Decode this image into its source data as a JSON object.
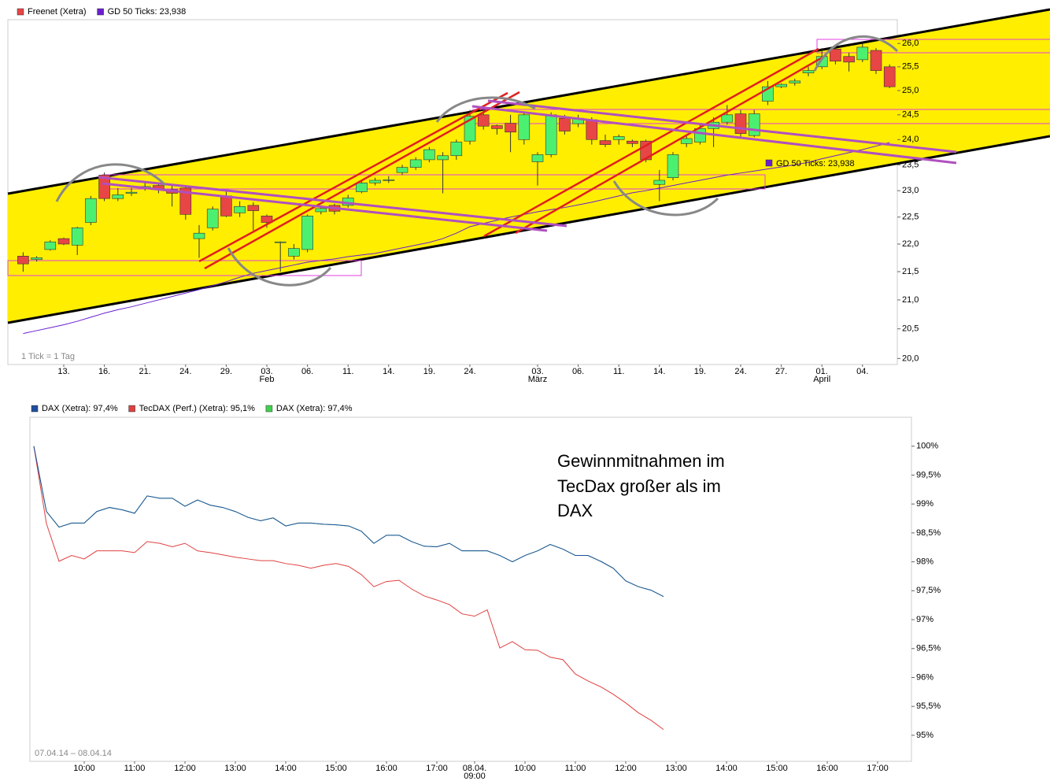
{
  "chart_data": [
    {
      "type": "candlestick",
      "note": "1 Tick = 1 Tag",
      "log_scale": true,
      "categories": [
        null,
        null,
        null,
        "13.",
        null,
        null,
        "16.",
        null,
        null,
        "21.",
        null,
        null,
        "24.",
        null,
        null,
        "29.",
        null,
        null,
        "03.",
        null,
        null,
        "06.",
        null,
        null,
        "11.",
        null,
        null,
        "14.",
        null,
        null,
        "19.",
        null,
        null,
        "24.",
        null,
        null,
        null,
        null,
        "03.",
        null,
        null,
        "06.",
        null,
        null,
        "11.",
        null,
        null,
        "14.",
        null,
        null,
        "19.",
        null,
        null,
        "24.",
        null,
        null,
        "27.",
        null,
        null,
        "01.",
        null,
        null,
        "04.",
        null,
        null
      ],
      "category_sublabels": [
        null,
        null,
        null,
        null,
        null,
        null,
        null,
        null,
        null,
        null,
        null,
        null,
        null,
        null,
        null,
        null,
        null,
        null,
        "Feb",
        null,
        null,
        null,
        null,
        null,
        null,
        null,
        null,
        null,
        null,
        null,
        null,
        null,
        null,
        null,
        null,
        null,
        null,
        null,
        "März",
        null,
        null,
        null,
        null,
        null,
        null,
        null,
        null,
        null,
        null,
        null,
        null,
        null,
        null,
        null,
        null,
        null,
        null,
        null,
        null,
        "April",
        null,
        null,
        null,
        null,
        null
      ],
      "series": [
        {
          "name": "Freenet (Xetra)",
          "color": "#e84545",
          "up_color": "#4cf070",
          "open": [
            21.78,
            21.72,
            21.9,
            22.1,
            21.98,
            22.4,
            23.3,
            22.85,
            22.95,
            23.05,
            23.1,
            23.02,
            23.05,
            22.1,
            22.3,
            22.9,
            22.58,
            22.72,
            22.52,
            22.03,
            21.78,
            21.9,
            22.6,
            22.72,
            22.72,
            22.98,
            23.15,
            23.2,
            23.35,
            23.45,
            23.6,
            23.6,
            23.68,
            23.97,
            24.5,
            24.28,
            24.33,
            24.0,
            23.56,
            23.7,
            24.43,
            24.32,
            24.4,
            23.98,
            24.0,
            23.97,
            23.97,
            23.12,
            23.25,
            23.92,
            23.95,
            24.22,
            24.35,
            24.52,
            24.08,
            24.78,
            25.08,
            25.16,
            25.37,
            25.5,
            25.88,
            25.72,
            25.65,
            25.85,
            25.5
          ],
          "high": [
            21.85,
            21.78,
            22.07,
            22.12,
            22.32,
            22.9,
            23.35,
            23.05,
            23.05,
            23.15,
            23.15,
            23.1,
            23.1,
            22.35,
            22.7,
            23.0,
            22.8,
            22.78,
            22.55,
            22.05,
            22.0,
            22.55,
            22.72,
            22.75,
            22.92,
            23.2,
            23.25,
            23.28,
            23.5,
            23.65,
            23.85,
            23.75,
            24.0,
            24.6,
            24.6,
            24.3,
            24.5,
            24.55,
            23.75,
            24.55,
            24.5,
            24.5,
            24.45,
            24.1,
            24.1,
            24.0,
            24.0,
            23.4,
            23.75,
            24.1,
            24.3,
            24.45,
            24.7,
            24.6,
            24.6,
            25.2,
            25.15,
            25.25,
            25.5,
            25.9,
            25.95,
            25.8,
            26.0,
            25.9,
            25.55
          ],
          "low": [
            21.5,
            21.68,
            21.88,
            21.98,
            21.8,
            22.35,
            22.8,
            22.8,
            22.9,
            23.0,
            22.95,
            22.7,
            22.45,
            21.75,
            22.25,
            22.5,
            22.5,
            22.25,
            22.3,
            21.5,
            21.72,
            21.85,
            22.55,
            22.55,
            22.68,
            22.95,
            23.1,
            23.15,
            23.3,
            23.4,
            23.55,
            22.95,
            23.6,
            23.9,
            24.2,
            24.1,
            23.75,
            23.9,
            23.1,
            23.65,
            24.1,
            24.25,
            23.9,
            23.85,
            23.9,
            23.85,
            23.55,
            22.8,
            23.2,
            23.85,
            23.9,
            23.85,
            24.3,
            24.05,
            24.05,
            24.7,
            25.05,
            25.1,
            25.3,
            25.45,
            25.55,
            25.4,
            25.6,
            25.35,
            25.05
          ],
          "close": [
            21.64,
            21.75,
            22.04,
            22.0,
            22.3,
            22.85,
            22.85,
            22.92,
            22.97,
            23.08,
            23.03,
            22.95,
            22.55,
            22.2,
            22.65,
            22.52,
            22.7,
            22.62,
            22.4,
            22.04,
            21.92,
            22.52,
            22.66,
            22.61,
            22.86,
            23.15,
            23.2,
            23.21,
            23.45,
            23.6,
            23.8,
            23.68,
            23.95,
            24.47,
            24.27,
            24.22,
            24.15,
            24.5,
            23.7,
            24.5,
            24.17,
            24.43,
            24.0,
            23.9,
            24.06,
            23.92,
            23.6,
            23.2,
            23.7,
            24.02,
            24.22,
            24.35,
            24.5,
            24.12,
            24.52,
            25.08,
            25.13,
            25.2,
            25.42,
            25.72,
            25.62,
            25.6,
            25.92,
            25.42,
            25.08
          ]
        },
        {
          "name": "GD 50 Ticks: 23,938",
          "color": "#6a1fd0",
          "values": [
            20.42,
            20.47,
            20.52,
            20.57,
            20.63,
            20.7,
            20.77,
            20.83,
            20.88,
            20.94,
            21.0,
            21.06,
            21.12,
            21.18,
            21.25,
            21.32,
            21.4,
            21.47,
            21.52,
            21.57,
            21.62,
            21.67,
            21.7,
            21.73,
            21.77,
            21.8,
            21.83,
            21.88,
            21.93,
            21.98,
            22.03,
            22.1,
            22.2,
            22.32,
            22.38,
            22.44,
            22.5,
            22.55,
            22.6,
            22.64,
            22.68,
            22.73,
            22.78,
            22.84,
            22.9,
            22.96,
            23.0,
            23.05,
            23.1,
            23.15,
            23.2,
            23.25,
            23.3,
            23.34,
            23.38,
            23.42,
            23.46,
            23.5,
            23.55,
            23.62,
            23.68,
            23.74,
            23.8,
            23.87,
            23.94
          ]
        }
      ],
      "ylim": [
        19.9,
        26.52
      ],
      "yticks": [
        {
          "value": 20,
          "label": "20,0"
        },
        {
          "value": 20.5,
          "label": "20,5"
        },
        {
          "value": 21,
          "label": "21,0"
        },
        {
          "value": 21.5,
          "label": "21,5"
        },
        {
          "value": 22,
          "label": "22,0"
        },
        {
          "value": 22.5,
          "label": "22,5"
        },
        {
          "value": 23,
          "label": "23,0"
        },
        {
          "value": 23.5,
          "label": "23,5"
        },
        {
          "value": 24,
          "label": "24,0"
        },
        {
          "value": 24.5,
          "label": "24,5"
        },
        {
          "value": 25,
          "label": "25,0"
        },
        {
          "value": 25.5,
          "label": "25,5"
        },
        {
          "value": 26,
          "label": "26,0"
        }
      ],
      "grid": false
    },
    {
      "type": "line",
      "period": "07.04.14 – 08.04.14",
      "annotation": [
        "Gewinnmitnahmen im",
        "TecDax großer als im",
        "DAX"
      ],
      "categories": [
        null,
        null,
        null,
        null,
        "10:00",
        null,
        null,
        null,
        "11:00",
        null,
        null,
        null,
        "12:00",
        null,
        null,
        null,
        "13:00",
        null,
        null,
        null,
        "14:00",
        null,
        null,
        null,
        "15:00",
        null,
        null,
        null,
        "16:00",
        null,
        null,
        null,
        "17:00",
        null,
        null,
        "08.04.",
        null,
        null,
        null,
        "10:00",
        null,
        null,
        null,
        "11:00",
        null,
        null,
        null,
        "12:00",
        null,
        null,
        null,
        "13:00",
        null,
        null,
        null,
        "14:00",
        null,
        null,
        null,
        "15:00",
        null,
        null,
        null,
        "16:00",
        null,
        null,
        null,
        "17:00"
      ],
      "category_sublabels": [
        null,
        null,
        null,
        null,
        null,
        null,
        null,
        null,
        null,
        null,
        null,
        null,
        null,
        null,
        null,
        null,
        null,
        null,
        null,
        null,
        null,
        null,
        null,
        null,
        null,
        null,
        null,
        null,
        null,
        null,
        null,
        null,
        null,
        null,
        null,
        "09:00",
        null,
        null,
        null,
        null,
        null,
        null,
        null,
        null,
        null,
        null,
        null,
        null,
        null,
        null,
        null,
        null,
        null,
        null,
        null,
        null,
        null,
        null,
        null,
        null,
        null,
        null,
        null,
        null,
        null,
        null,
        null,
        null
      ],
      "series": [
        {
          "name": "DAX (Xetra): 97,4%",
          "color": "#1f4e9e",
          "values": [
            100.0,
            98.87,
            98.6,
            98.67,
            98.67,
            98.87,
            98.94,
            98.9,
            98.84,
            99.14,
            99.1,
            99.1,
            98.96,
            99.07,
            98.98,
            98.94,
            98.87,
            98.77,
            98.71,
            98.76,
            98.62,
            98.67,
            98.67,
            98.65,
            98.64,
            98.62,
            98.53,
            98.32,
            98.46,
            98.46,
            98.35,
            98.27,
            98.26,
            98.32,
            98.19,
            98.19,
            98.19,
            98.11,
            98.0,
            98.11,
            98.19,
            98.3,
            98.22,
            98.11,
            98.11,
            98.01,
            97.89,
            97.67,
            97.57,
            97.51,
            97.4,
            null,
            null,
            null,
            null,
            null,
            null,
            null,
            null,
            null,
            null,
            null,
            null,
            null,
            null,
            null,
            null,
            null
          ]
        },
        {
          "name": "TecDAX (Perf.) (Xetra): 95,1%",
          "color": "#e04040",
          "values": [
            100.0,
            98.66,
            98.01,
            98.11,
            98.05,
            98.19,
            98.19,
            98.19,
            98.16,
            98.35,
            98.32,
            98.26,
            98.32,
            98.19,
            98.16,
            98.12,
            98.08,
            98.05,
            98.02,
            98.02,
            97.97,
            97.94,
            97.89,
            97.94,
            97.97,
            97.92,
            97.78,
            97.57,
            97.66,
            97.68,
            97.53,
            97.41,
            97.34,
            97.26,
            97.1,
            97.06,
            97.17,
            96.51,
            96.62,
            96.48,
            96.47,
            96.35,
            96.31,
            96.06,
            95.94,
            95.84,
            95.71,
            95.56,
            95.39,
            95.26,
            95.1,
            null,
            null,
            null,
            null,
            null,
            null,
            null,
            null,
            null,
            null,
            null,
            null,
            null,
            null,
            null,
            null,
            null
          ]
        },
        {
          "name": "DAX (Xetra): 97,4%",
          "color": "#40d050",
          "values": [
            100.0,
            98.87,
            98.6,
            98.67,
            98.67,
            98.87,
            98.94,
            98.9,
            98.84,
            99.14,
            99.1,
            99.1,
            98.96,
            99.07,
            98.98,
            98.94,
            98.87,
            98.77,
            98.71,
            98.76,
            98.62,
            98.67,
            98.67,
            98.65,
            98.64,
            98.62,
            98.53,
            98.32,
            98.46,
            98.46,
            98.35,
            98.27,
            98.26,
            98.32,
            98.19,
            98.19,
            98.19,
            98.11,
            98.0,
            98.11,
            98.19,
            98.3,
            98.22,
            98.11,
            98.11,
            98.01,
            97.89,
            97.67,
            97.57,
            97.51,
            97.4,
            null,
            null,
            null,
            null,
            null,
            null,
            null,
            null,
            null,
            null,
            null,
            null,
            null,
            null,
            null,
            null,
            null
          ]
        }
      ],
      "ylim": [
        94.55,
        100.5
      ],
      "yticks": [
        {
          "value": 95,
          "label": "95%"
        },
        {
          "value": 95.5,
          "label": "95,5%"
        },
        {
          "value": 96,
          "label": "96%"
        },
        {
          "value": 96.5,
          "label": "96,5%"
        },
        {
          "value": 97,
          "label": "97%"
        },
        {
          "value": 97.5,
          "label": "97,5%"
        },
        {
          "value": 98,
          "label": "98%"
        },
        {
          "value": 98.5,
          "label": "98,5%"
        },
        {
          "value": 99,
          "label": "99%"
        },
        {
          "value": 99.5,
          "label": "99,5%"
        },
        {
          "value": 100,
          "label": "100%"
        }
      ],
      "grid": false
    }
  ]
}
